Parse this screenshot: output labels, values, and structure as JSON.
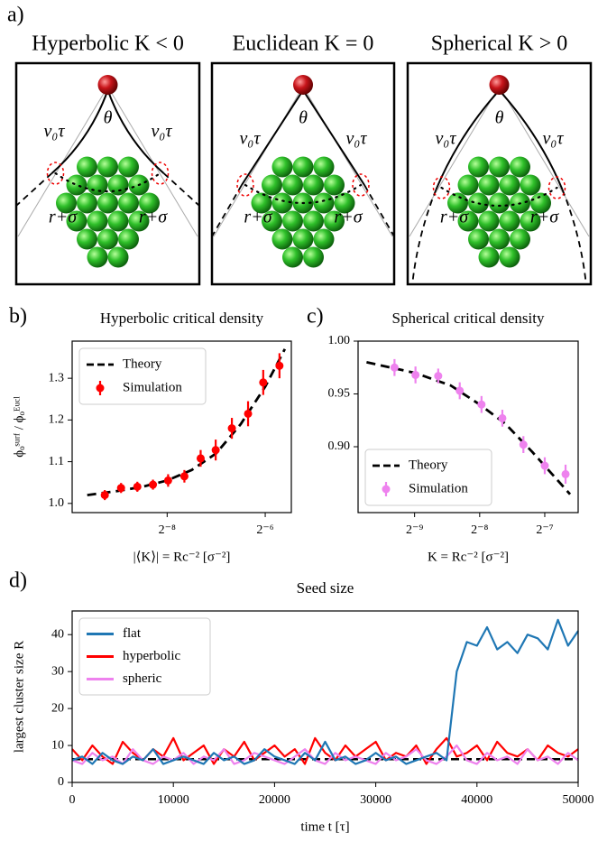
{
  "diagram": {
    "label": "a)",
    "panels": [
      {
        "title": "Hyperbolic K < 0",
        "speed": "v₀τ",
        "angle": "θ",
        "radius": "r+σ"
      },
      {
        "title": "Euclidean K = 0",
        "speed": "v₀τ",
        "angle": "θ",
        "radius": "r+σ"
      },
      {
        "title": "Spherical K > 0",
        "speed": "v₀τ",
        "angle": "θ",
        "radius": "r+σ"
      }
    ]
  },
  "chart_data": [
    {
      "type": "line",
      "panel_label": "b)",
      "title": "Hyperbolic critical density",
      "xlabel": "|⟨K⟩| = Rc⁻² [σ⁻²]",
      "ylabel": "ϕₒˢᵘʳᶠ / ϕₒᴱᵘᶜˡ",
      "xscale": "log",
      "xlim": [
        0.00102,
        0.0226
      ],
      "ylim": [
        0.978,
        1.389
      ],
      "xticks": [
        {
          "value": 0.00390625,
          "label": "2⁻⁸"
        },
        {
          "value": 0.015625,
          "label": "2⁻⁶"
        }
      ],
      "yticks": [
        {
          "value": 1,
          "label": "1.0"
        },
        1.1,
        1.2,
        1.3
      ],
      "legend": "upper left",
      "series": [
        {
          "name": "Theory",
          "color": "#000000",
          "linestyle": "dashed",
          "x": [
            0.001262,
            0.001953,
            0.002762,
            0.003906,
            0.005524,
            0.007813,
            0.01105,
            0.01563,
            0.02062
          ],
          "values": [
            1.02,
            1.03,
            1.04,
            1.055,
            1.08,
            1.12,
            1.19,
            1.28,
            1.37
          ]
        },
        {
          "name": "Simulation",
          "color": "#ff0000",
          "linestyle": "none",
          "marker": true,
          "x": [
            0.001618,
            0.002036,
            0.002563,
            0.003196,
            0.00396,
            0.004984,
            0.006272,
            0.007758,
            0.009751,
            0.01226,
            0.01519,
            0.01911
          ],
          "values": [
            1.02,
            1.037,
            1.04,
            1.045,
            1.055,
            1.065,
            1.108,
            1.128,
            1.18,
            1.215,
            1.29,
            1.33
          ],
          "errors": [
            0.012,
            0.012,
            0.012,
            0.012,
            0.015,
            0.015,
            0.02,
            0.025,
            0.025,
            0.03,
            0.03,
            0.03
          ]
        }
      ]
    },
    {
      "type": "line",
      "panel_label": "c)",
      "title": "Spherical critical density",
      "xlabel": "K = Rc⁻² [σ⁻²]",
      "xscale": "log",
      "xlim": [
        0.00107,
        0.01115
      ],
      "ylim": [
        0.8376,
        1.0
      ],
      "xticks": [
        {
          "value": 0.001953125,
          "label": "2⁻⁹"
        },
        {
          "value": 0.00390625,
          "label": "2⁻⁸"
        },
        {
          "value": 0.0078125,
          "label": "2⁻⁷"
        }
      ],
      "yticks": [
        {
          "value": 0.9,
          "label": "0.90"
        },
        0.95,
        {
          "value": 1,
          "label": "1.00"
        }
      ],
      "legend": "lower left",
      "series": [
        {
          "name": "Theory",
          "color": "#000000",
          "linestyle": "dashed",
          "x": [
            0.001171,
            0.001953,
            0.002869,
            0.003906,
            0.00512,
            0.006844,
            0.01023
          ],
          "values": [
            0.98,
            0.97,
            0.958,
            0.94,
            0.922,
            0.895,
            0.855
          ]
        },
        {
          "name": "Simulation",
          "color": "#ee82ee",
          "linestyle": "none",
          "marker": true,
          "x": [
            0.001577,
            0.001972,
            0.002512,
            0.003159,
            0.003983,
            0.004973,
            0.006223,
            0.0078125,
            0.00975
          ],
          "values": [
            0.975,
            0.968,
            0.967,
            0.953,
            0.94,
            0.927,
            0.902,
            0.882,
            0.874
          ],
          "errors": [
            0.008,
            0.008,
            0.007,
            0.008,
            0.008,
            0.008,
            0.008,
            0.008,
            0.009
          ]
        }
      ]
    },
    {
      "type": "line",
      "panel_label": "d)",
      "title": "Seed size",
      "xlabel": "time t [τ]",
      "ylabel": "largest cluster size R",
      "xlim": [
        0,
        50000
      ],
      "ylim": [
        0,
        46.4
      ],
      "xticks": [
        0,
        10000,
        20000,
        30000,
        40000,
        50000
      ],
      "yticks": [
        0,
        10,
        20,
        30,
        40
      ],
      "legend": "upper left",
      "hline": 6.3,
      "x": [
        0,
        1000,
        2000,
        3000,
        4000,
        5000,
        6000,
        7000,
        8000,
        9000,
        10000,
        11000,
        12000,
        13000,
        14000,
        15000,
        16000,
        17000,
        18000,
        19000,
        20000,
        21000,
        22000,
        23000,
        24000,
        25000,
        26000,
        27000,
        28000,
        29000,
        30000,
        31000,
        32000,
        33000,
        34000,
        35000,
        36000,
        37000,
        38000,
        39000,
        40000,
        41000,
        42000,
        43000,
        44000,
        45000,
        46000,
        47000,
        48000,
        49000,
        50000
      ],
      "series": [
        {
          "name": "hyperbolic",
          "color": "#ff0000",
          "linestyle": "solid",
          "values": [
            9,
            6,
            10,
            7,
            5,
            11,
            8,
            6,
            9,
            7,
            12,
            6,
            8,
            10,
            5,
            9,
            7,
            11,
            6,
            8,
            10,
            7,
            9,
            5,
            12,
            8,
            6,
            10,
            7,
            9,
            11,
            6,
            8,
            7,
            10,
            5,
            9,
            12,
            7,
            8,
            10,
            6,
            11,
            8,
            7,
            9,
            6,
            10,
            8,
            7,
            9
          ]
        },
        {
          "name": "spheric",
          "color": "#ee82ee",
          "linestyle": "solid",
          "values": [
            6,
            5,
            8,
            6,
            7,
            5,
            9,
            6,
            5,
            7,
            6,
            8,
            5,
            7,
            6,
            9,
            5,
            6,
            8,
            7,
            6,
            5,
            7,
            9,
            6,
            5,
            8,
            6,
            7,
            6,
            5,
            8,
            6,
            7,
            9,
            6,
            5,
            7,
            10,
            6,
            5,
            8,
            6,
            7,
            5,
            9,
            6,
            7,
            5,
            8,
            6
          ]
        },
        {
          "name": "flat",
          "color": "#1f77b4",
          "linestyle": "solid",
          "values": [
            6,
            7,
            5,
            8,
            6,
            5,
            7,
            6,
            9,
            5,
            6,
            7,
            6,
            5,
            8,
            6,
            7,
            5,
            6,
            9,
            7,
            6,
            5,
            8,
            6,
            11,
            6,
            7,
            5,
            6,
            8,
            6,
            7,
            5,
            6,
            7,
            8,
            6,
            30,
            38,
            37,
            42,
            36,
            38,
            35,
            40,
            39,
            36,
            44,
            37,
            41
          ]
        }
      ]
    }
  ]
}
